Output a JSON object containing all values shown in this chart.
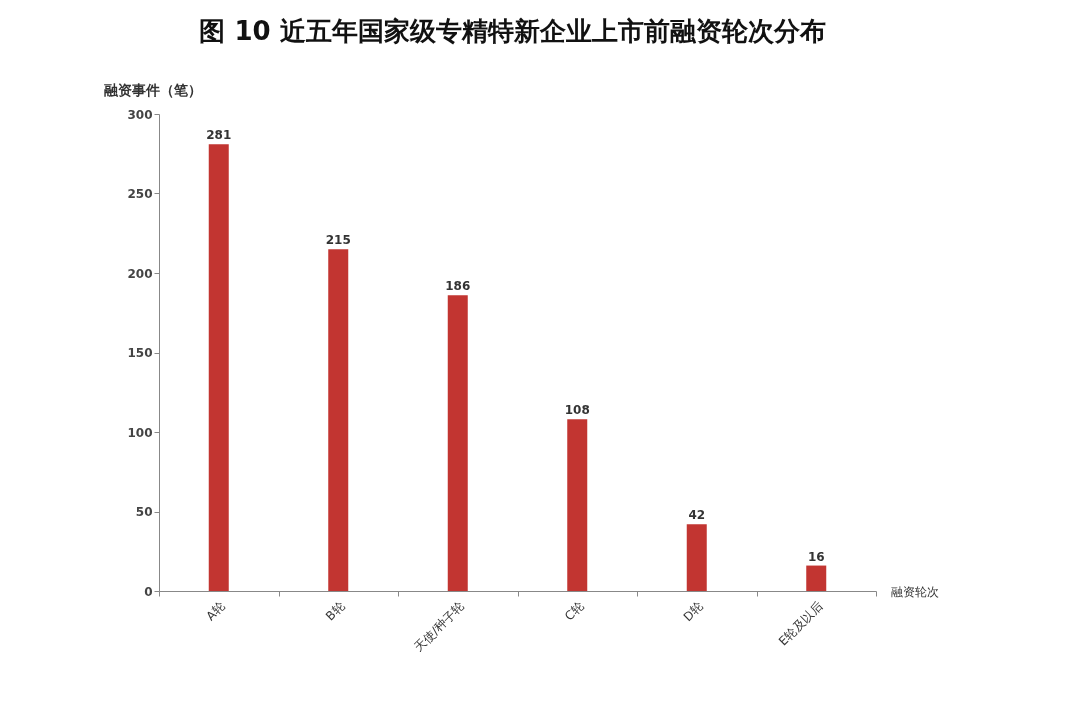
{
  "chart_data": {
    "type": "bar",
    "title": "图 10 近五年国家级专精特新企业上市前融资轮次分布",
    "xlabel": "融资轮次",
    "ylabel": "融资事件（笔）",
    "categories": [
      "A轮",
      "B轮",
      "天使/种子轮",
      "C轮",
      "D轮",
      "E轮及以后"
    ],
    "values": [
      281,
      215,
      186,
      108,
      42,
      16
    ],
    "color": "#c23531",
    "ylim": [
      0,
      300
    ],
    "yticks": [
      0,
      50,
      100,
      150,
      200,
      250,
      300
    ],
    "data_labels": true,
    "grid": false
  }
}
